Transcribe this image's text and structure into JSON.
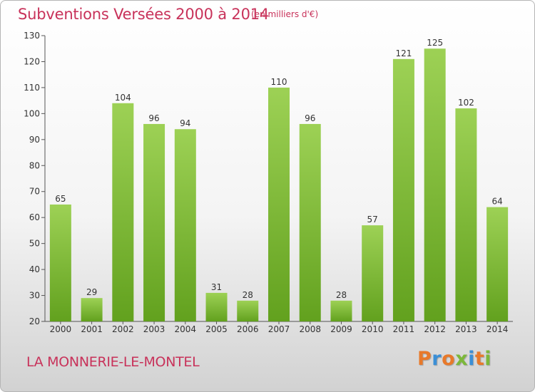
{
  "header": {
    "title": "Subventions Versées 2000 à 2014",
    "subtitle": "(en milliers d'€)"
  },
  "footer": {
    "commune": "LA MONNERIE-LE-MONTEL",
    "logo": "Proxiti"
  },
  "colors": {
    "bar_top": "#9dd155",
    "bar_bottom": "#62a11e",
    "title": "#c8325a",
    "logo_letters": [
      "#e8792a",
      "#3b8fd6",
      "#e8792a",
      "#7cb83a",
      "#3b8fd6",
      "#e8792a",
      "#7cb83a"
    ]
  },
  "chart_data": {
    "type": "bar",
    "title": "Subventions Versées 2000 à 2014",
    "ylabel": "",
    "xlabel": "",
    "categories": [
      "2000",
      "2001",
      "2002",
      "2003",
      "2004",
      "2005",
      "2006",
      "2007",
      "2008",
      "2009",
      "2010",
      "2011",
      "2012",
      "2013",
      "2014"
    ],
    "values": [
      65,
      29,
      104,
      96,
      94,
      31,
      28,
      110,
      96,
      28,
      57,
      121,
      125,
      102,
      64
    ],
    "ylim": [
      20,
      130
    ],
    "yticks": [
      20,
      30,
      40,
      50,
      60,
      70,
      80,
      90,
      100,
      110,
      120,
      130
    ],
    "grid": false,
    "data_labels": true
  }
}
